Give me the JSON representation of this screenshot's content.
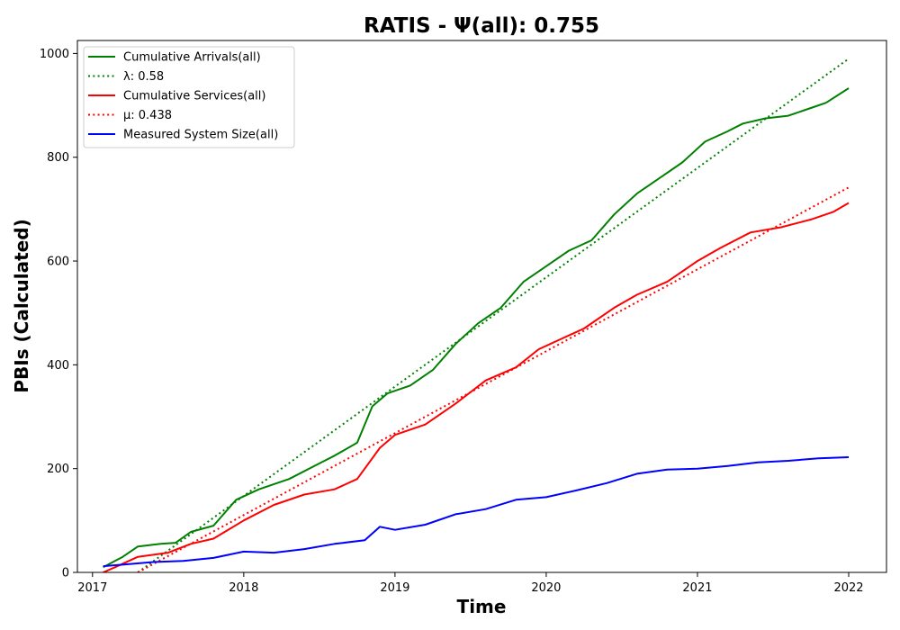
{
  "chart_data": {
    "type": "line",
    "title": "RATIS -  Ψ(all): 0.755",
    "xlabel": "Time",
    "ylabel": "PBIs (Calculated)",
    "xlim": [
      2016.9,
      2022.25
    ],
    "ylim": [
      0,
      1025
    ],
    "xticks": [
      2017,
      2018,
      2019,
      2020,
      2021,
      2022
    ],
    "xtick_labels": [
      "2017",
      "2018",
      "2019",
      "2020",
      "2021",
      "2022"
    ],
    "yticks": [
      0,
      200,
      400,
      600,
      800,
      1000
    ],
    "ytick_labels": [
      "0",
      "200",
      "400",
      "600",
      "800",
      "1000"
    ],
    "grid": false,
    "legend_position": "upper-left",
    "series": [
      {
        "name": "Cumulative Arrivals(all)",
        "color": "#008000",
        "style": "solid",
        "x": [
          2017.07,
          2017.2,
          2017.3,
          2017.45,
          2017.55,
          2017.65,
          2017.8,
          2017.95,
          2018.1,
          2018.3,
          2018.5,
          2018.6,
          2018.75,
          2018.85,
          2018.95,
          2019.1,
          2019.25,
          2019.4,
          2019.55,
          2019.7,
          2019.85,
          2020.0,
          2020.15,
          2020.3,
          2020.45,
          2020.6,
          2020.75,
          2020.9,
          2021.05,
          2021.2,
          2021.3,
          2021.45,
          2021.6,
          2021.75,
          2021.85,
          2022.0
        ],
        "y": [
          10,
          30,
          50,
          55,
          57,
          78,
          90,
          140,
          160,
          180,
          210,
          225,
          250,
          320,
          345,
          360,
          390,
          440,
          480,
          510,
          560,
          590,
          620,
          640,
          690,
          730,
          760,
          790,
          830,
          850,
          865,
          875,
          880,
          895,
          905,
          933
        ]
      },
      {
        "name": "λ: 0.58",
        "color": "#008000",
        "style": "dotted",
        "x": [
          2017.3,
          2022.0
        ],
        "y": [
          0,
          990
        ]
      },
      {
        "name": "Cumulative Services(all)",
        "color": "#ff0000",
        "style": "solid",
        "x": [
          2017.07,
          2017.15,
          2017.3,
          2017.5,
          2017.65,
          2017.8,
          2018.0,
          2018.2,
          2018.4,
          2018.6,
          2018.75,
          2018.9,
          2019.0,
          2019.2,
          2019.4,
          2019.6,
          2019.8,
          2019.95,
          2020.1,
          2020.25,
          2020.45,
          2020.6,
          2020.8,
          2021.0,
          2021.15,
          2021.35,
          2021.55,
          2021.75,
          2021.9,
          2022.0
        ],
        "y": [
          0,
          10,
          30,
          38,
          55,
          65,
          100,
          130,
          150,
          160,
          180,
          240,
          265,
          285,
          325,
          370,
          395,
          430,
          450,
          470,
          510,
          535,
          560,
          600,
          625,
          655,
          665,
          680,
          695,
          712
        ]
      },
      {
        "name": "μ: 0.438",
        "color": "#ff0000",
        "style": "dotted",
        "x": [
          2017.3,
          2022.0
        ],
        "y": [
          0,
          742
        ]
      },
      {
        "name": "Measured System Size(all)",
        "color": "#0000ff",
        "style": "solid",
        "x": [
          2017.07,
          2017.2,
          2017.4,
          2017.6,
          2017.8,
          2018.0,
          2018.2,
          2018.4,
          2018.6,
          2018.8,
          2018.9,
          2019.0,
          2019.2,
          2019.4,
          2019.6,
          2019.8,
          2020.0,
          2020.2,
          2020.4,
          2020.6,
          2020.8,
          2021.0,
          2021.2,
          2021.4,
          2021.6,
          2021.8,
          2022.0
        ],
        "y": [
          12,
          15,
          20,
          22,
          28,
          40,
          38,
          45,
          55,
          62,
          88,
          82,
          92,
          112,
          122,
          140,
          145,
          158,
          172,
          190,
          198,
          200,
          205,
          212,
          215,
          220,
          222
        ]
      }
    ]
  }
}
